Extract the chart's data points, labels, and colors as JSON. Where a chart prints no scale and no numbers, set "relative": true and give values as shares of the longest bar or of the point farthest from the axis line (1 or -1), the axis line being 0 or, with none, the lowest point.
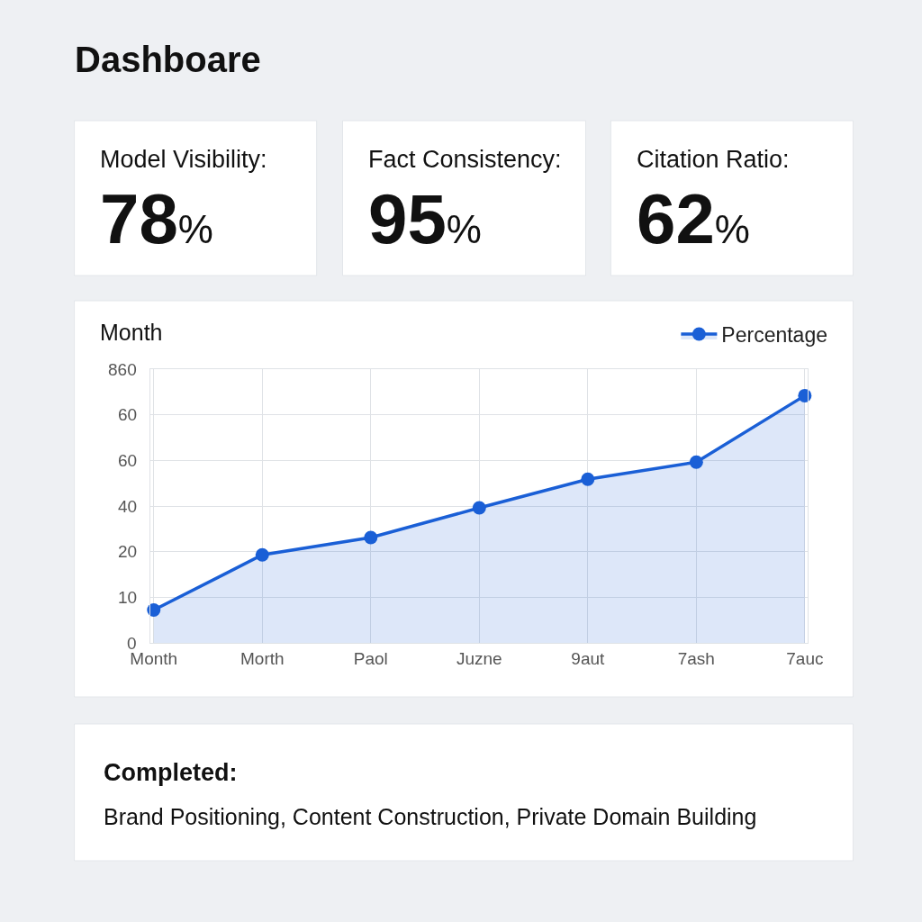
{
  "chart_data": [
    {
      "type": "other",
      "title": "Dashboare"
    },
    {
      "type": "other",
      "title": "Model Visibility:",
      "annotations": [
        "78%"
      ]
    },
    {
      "type": "other",
      "title": "Fact Consistency:",
      "annotations": [
        "95%"
      ]
    },
    {
      "type": "other",
      "title": "Citation Ratio:",
      "annotations": [
        "62%"
      ]
    },
    {
      "type": "area",
      "ylabel": "Month",
      "categories": [
        "Month",
        "Morth",
        "Paol",
        "Juzne",
        "9aut",
        "7ash",
        "7auc"
      ],
      "series": [
        {
          "name": "Percentage",
          "color": "#1a5fd6",
          "values": [
            0.133,
            0.356,
            0.426,
            0.546,
            0.662,
            0.731,
            1
          ]
        }
      ],
      "relative": true,
      "annotations": [
        "860",
        "60",
        "60",
        "40",
        "20",
        "10",
        "0"
      ],
      "grid": true,
      "legend": "top right",
      "marker": "circle",
      "line_style": "solid"
    },
    {
      "type": "other",
      "title": "Completed:",
      "annotations": [
        "Brand Positioning, Content Construction, Private Domain Building"
      ]
    }
  ]
}
